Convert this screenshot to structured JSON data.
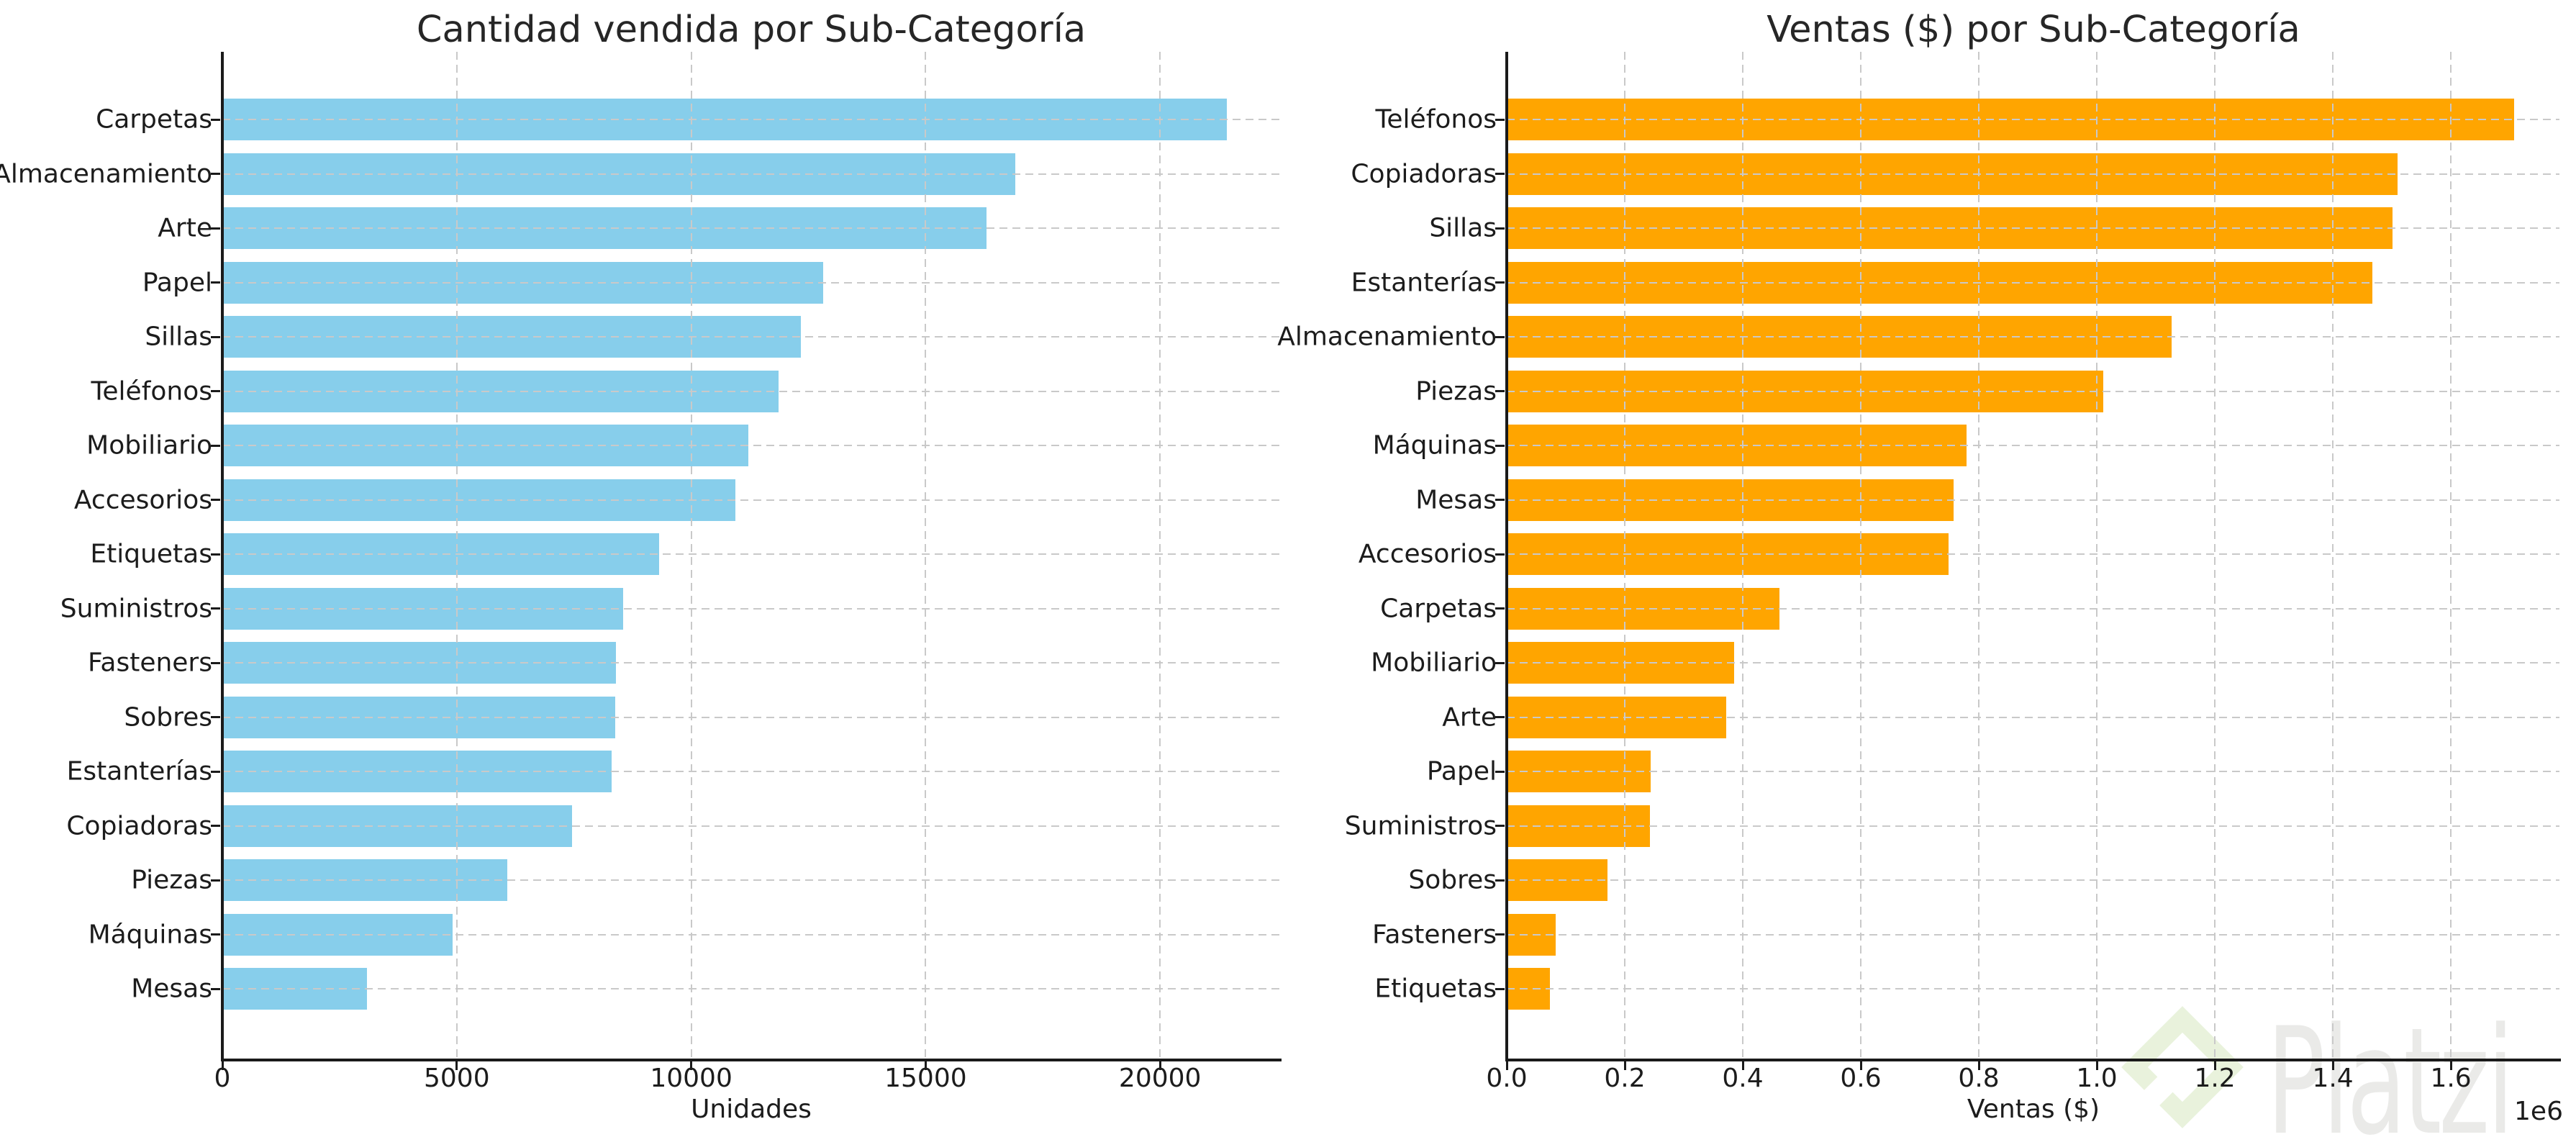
{
  "figure": {
    "background": "#ffffff"
  },
  "colors": {
    "bar_left": "#87CEEB",
    "bar_right": "#FFA500",
    "text": "#262626",
    "spine": "#1a1a1a",
    "grid": "#c9c9c9",
    "watermark_logo": "#e9f2dc",
    "watermark_text": "#eaeae8"
  },
  "watermark": {
    "brand": "Platzi",
    "logo": "platzi-diamond-icon"
  },
  "chart_data": [
    {
      "type": "bar",
      "orientation": "horizontal",
      "title": "Cantidad vendida por Sub-Categoría",
      "xlabel": "Unidades",
      "ylabel": "",
      "grid": "dashed",
      "bar_color": "#87CEEB",
      "xlim": [
        0,
        22560
      ],
      "xticks": [
        0,
        5000,
        10000,
        15000,
        20000
      ],
      "xtick_labels": [
        "0",
        "5000",
        "10000",
        "15000",
        "20000"
      ],
      "categories": [
        "Carpetas",
        "Almacenamiento",
        "Arte",
        "Papel",
        "Sillas",
        "Teléfonos",
        "Mobiliario",
        "Accesorios",
        "Etiquetas",
        "Suministros",
        "Fasteners",
        "Sobres",
        "Estanterías",
        "Copiadoras",
        "Piezas",
        "Máquinas",
        "Mesas"
      ],
      "values": [
        21429,
        16917,
        16301,
        12822,
        12336,
        11870,
        11225,
        10946,
        9322,
        8543,
        8390,
        8380,
        8310,
        7454,
        6078,
        4906,
        3083
      ]
    },
    {
      "type": "bar",
      "orientation": "horizontal",
      "title": "Ventas ($) por Sub-Categoría",
      "xlabel": "Ventas ($)",
      "ylabel": "",
      "grid": "dashed",
      "bar_color": "#FFA500",
      "xlim": [
        0,
        1784000
      ],
      "xticks": [
        0,
        200000,
        400000,
        600000,
        800000,
        1000000,
        1200000,
        1400000,
        1600000
      ],
      "xtick_labels": [
        "0.0",
        "0.2",
        "0.4",
        "0.6",
        "0.8",
        "1.0",
        "1.2",
        "1.4",
        "1.6"
      ],
      "offset_label": "1e6",
      "categories": [
        "Teléfonos",
        "Copiadoras",
        "Sillas",
        "Estanterías",
        "Almacenamiento",
        "Piezas",
        "Máquinas",
        "Mesas",
        "Accesorios",
        "Carpetas",
        "Mobiliario",
        "Arte",
        "Papel",
        "Suministros",
        "Sobres",
        "Fasteners",
        "Etiquetas"
      ],
      "values": [
        1706824,
        1509436,
        1501682,
        1466572,
        1127086,
        1011064,
        779060,
        757042,
        749237,
        461912,
        385578,
        372092,
        244292,
        243074,
        170904,
        83242,
        73404
      ]
    }
  ]
}
